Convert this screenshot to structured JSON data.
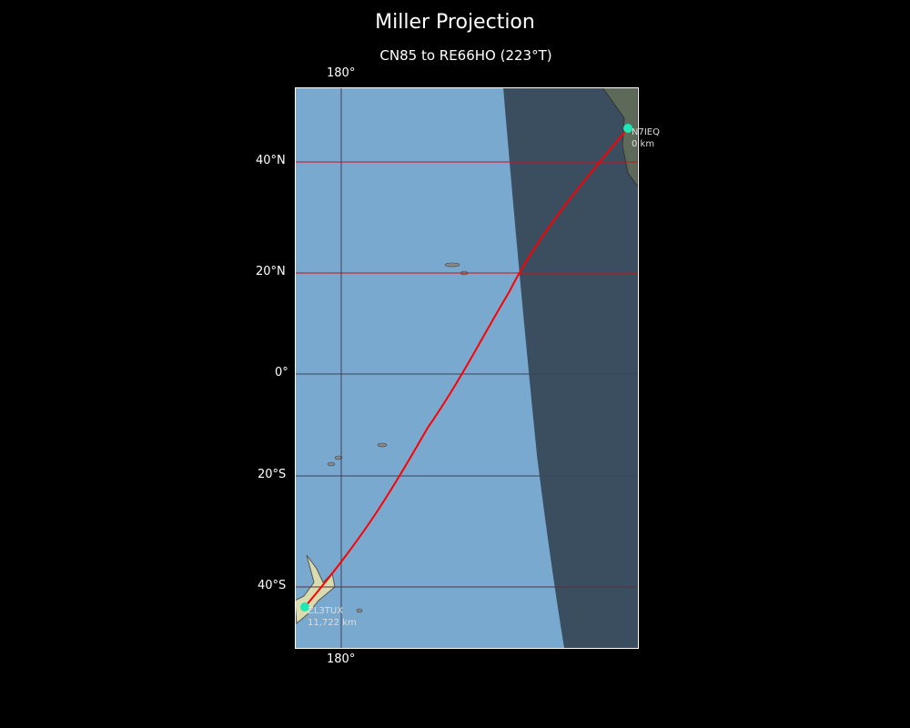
{
  "title": "Miller Projection",
  "subtitle": "CN85 to RE66HO (223°T)",
  "axes": {
    "lon_top": "180°",
    "lon_bottom": "180°",
    "lat_labels": [
      "40°N",
      "20°N",
      "0°",
      "20°S",
      "40°S"
    ]
  },
  "stations": [
    {
      "call": "N7IEQ",
      "distance": "0 km",
      "color": "#1de9b6"
    },
    {
      "call": "ZL3TUX",
      "distance": "11,722 km",
      "color": "#1de9b6"
    }
  ],
  "colors": {
    "path": "#ff0000",
    "ocean": "#79a9cf",
    "night": "#2c3e50",
    "background": "#000000"
  }
}
